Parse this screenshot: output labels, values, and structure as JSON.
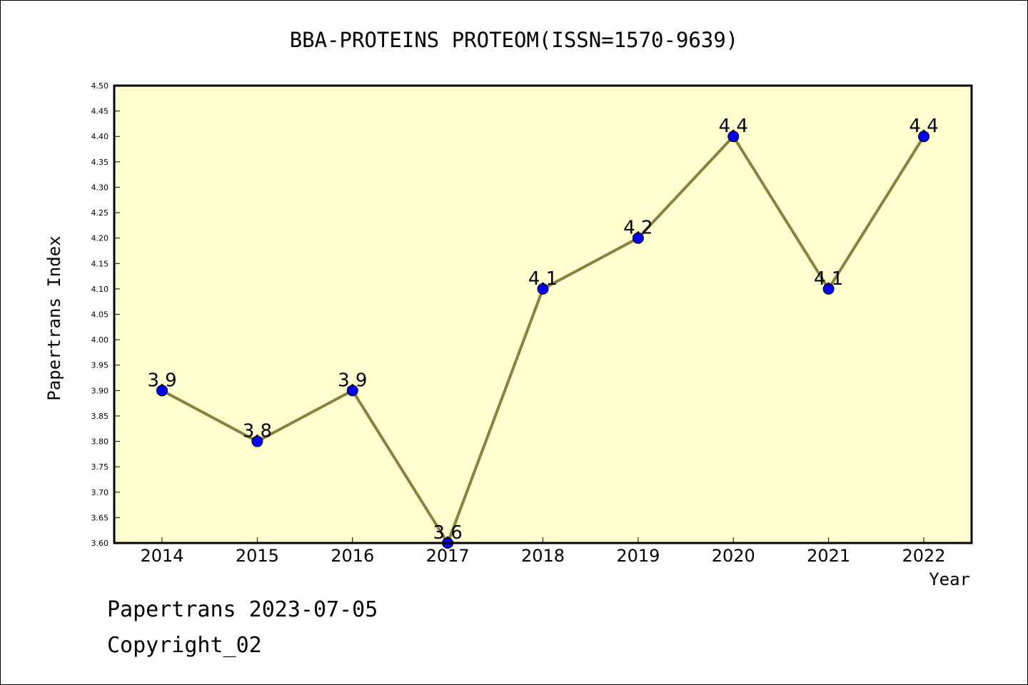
{
  "chart_data": {
    "type": "line",
    "title": "BBA-PROTEINS PROTEOM(ISSN=1570-9639)",
    "xlabel": "Year",
    "ylabel": "Papertrans Index",
    "categories": [
      "2014",
      "2015",
      "2016",
      "2017",
      "2018",
      "2019",
      "2020",
      "2021",
      "2022"
    ],
    "values": [
      3.9,
      3.8,
      3.9,
      3.6,
      4.1,
      4.2,
      4.4,
      4.1,
      4.4
    ],
    "data_labels": [
      "3.9",
      "3.8",
      "3.9",
      "3.6",
      "4.1",
      "4.2",
      "4.4",
      "4.1",
      "4.4"
    ],
    "ylim": [
      3.6,
      4.5
    ],
    "yticks": [
      "3.60",
      "3.65",
      "3.70",
      "3.75",
      "3.80",
      "3.85",
      "3.90",
      "3.95",
      "4.00",
      "4.05",
      "4.10",
      "4.15",
      "4.20",
      "4.25",
      "4.30",
      "4.35",
      "4.40",
      "4.45",
      "4.50"
    ],
    "grid": false,
    "colors": {
      "plot_background": "#ffffd0",
      "line": "#8b8040",
      "marker": "#0000ff"
    }
  },
  "footer": {
    "date_line": "Papertrans 2023-07-05",
    "copyright": "Copyright_02"
  }
}
